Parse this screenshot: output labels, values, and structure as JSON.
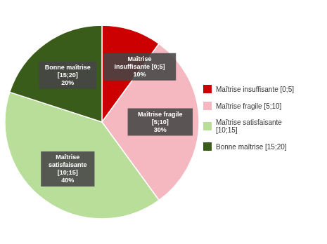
{
  "chart_data": {
    "type": "pie",
    "categories": [
      "Maîtrise insuffisante [0;5]",
      "Maîtrise fragile [5;10]",
      "Maîtrise satisfaisante\n[10;15]",
      "Bonne maîtrise [15;20]"
    ],
    "values": [
      10,
      30,
      40,
      20
    ],
    "value_labels": [
      "Maîtrise\ninsuffisante [0;5]\n10%",
      "Maîtrise fragile\n[5;10]\n30%",
      "Maîtrise\nsatisfaisante\n[10;15]\n40%",
      "Bonne maîtrise\n[15;20]\n20%"
    ],
    "colors": [
      "#cc0000",
      "#f5b8c0",
      "#b8de9a",
      "#3a5c1a"
    ],
    "data_labels": true,
    "legend": "right"
  }
}
